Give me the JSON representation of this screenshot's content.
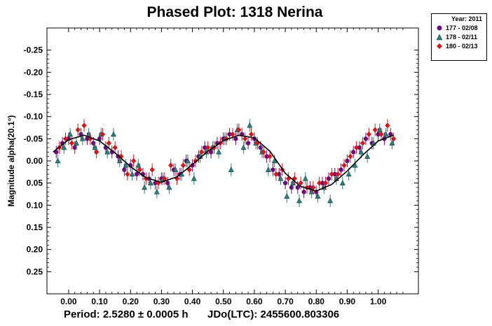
{
  "chart_data": {
    "type": "scatter",
    "title": "Phased Plot: 1318 Nerina",
    "xlabel": "",
    "ylabel": "Magnitude alpha(20.1°)",
    "xlim": [
      -0.07,
      1.13
    ],
    "ylim": [
      -0.3,
      0.3
    ],
    "y_inverted": true,
    "x_ticks": [
      0.0,
      0.1,
      0.2,
      0.3,
      0.4,
      0.5,
      0.6,
      0.7,
      0.8,
      0.9,
      1.0
    ],
    "x_tick_labels": [
      "0.00",
      "0.10",
      "0.20",
      "0.30",
      "0.40",
      "0.50",
      "0.60",
      "0.70",
      "0.80",
      "0.90",
      "1.00"
    ],
    "y_ticks": [
      -0.25,
      -0.2,
      -0.15,
      -0.1,
      -0.05,
      0.0,
      0.05,
      0.1,
      0.15,
      0.2,
      0.25
    ],
    "y_tick_labels": [
      "-0.25",
      "-0.20",
      "-0.15",
      "-0.10",
      "-0.05",
      "0.00",
      "0.05",
      "0.10",
      "0.15",
      "0.20",
      "0.25"
    ],
    "fit_curve": {
      "color": "#000000",
      "x": [
        -0.05,
        0.0,
        0.05,
        0.1,
        0.15,
        0.2,
        0.25,
        0.3,
        0.35,
        0.4,
        0.45,
        0.5,
        0.55,
        0.6,
        0.65,
        0.7,
        0.75,
        0.8,
        0.85,
        0.9,
        0.95,
        1.0,
        1.05
      ],
      "y": [
        -0.02,
        -0.048,
        -0.058,
        -0.045,
        -0.018,
        0.013,
        0.038,
        0.048,
        0.036,
        0.008,
        -0.022,
        -0.046,
        -0.058,
        -0.052,
        -0.022,
        0.028,
        0.058,
        0.068,
        0.053,
        0.023,
        -0.013,
        -0.045,
        -0.058
      ]
    },
    "series": [
      {
        "name": "177 - 02/08",
        "color": "#6a0d7a",
        "marker": "circle",
        "x": [
          -0.04,
          -0.02,
          0.0,
          0.02,
          0.04,
          0.06,
          0.08,
          0.1,
          0.12,
          0.14,
          0.16,
          0.18,
          0.2,
          0.22,
          0.24,
          0.26,
          0.28,
          0.3,
          0.32,
          0.34,
          0.36,
          0.38,
          0.4,
          0.42,
          0.44,
          0.46,
          0.48,
          0.5,
          0.52,
          0.54,
          0.56,
          0.58,
          0.6,
          0.62,
          0.64,
          0.66,
          0.68,
          0.7,
          0.72,
          0.74,
          0.76,
          0.78,
          0.8,
          0.82,
          0.84,
          0.86,
          0.88,
          0.9,
          0.92,
          0.94,
          0.96,
          0.98,
          1.0,
          1.02,
          1.04
        ],
        "y": [
          -0.02,
          -0.04,
          -0.05,
          -0.03,
          -0.06,
          -0.05,
          -0.04,
          -0.05,
          -0.03,
          -0.02,
          -0.01,
          0.02,
          0.01,
          0.03,
          0.03,
          0.04,
          0.05,
          0.04,
          0.05,
          0.02,
          0.03,
          0.0,
          0.01,
          -0.01,
          -0.03,
          -0.02,
          -0.04,
          -0.05,
          -0.06,
          -0.05,
          -0.06,
          -0.04,
          -0.05,
          -0.03,
          -0.01,
          0.02,
          0.03,
          0.05,
          0.06,
          0.06,
          0.07,
          0.06,
          0.07,
          0.05,
          0.04,
          0.03,
          0.02,
          0.0,
          -0.02,
          -0.03,
          -0.05,
          -0.04,
          -0.06,
          -0.05,
          -0.06
        ]
      },
      {
        "name": "178 - 02/11",
        "color": "#2a7f7f",
        "marker": "triangle",
        "x": [
          -0.035,
          -0.015,
          0.005,
          0.025,
          0.045,
          0.065,
          0.085,
          0.105,
          0.125,
          0.145,
          0.165,
          0.185,
          0.205,
          0.225,
          0.245,
          0.265,
          0.285,
          0.305,
          0.325,
          0.345,
          0.365,
          0.385,
          0.405,
          0.425,
          0.445,
          0.465,
          0.485,
          0.505,
          0.525,
          0.545,
          0.565,
          0.585,
          0.605,
          0.625,
          0.645,
          0.665,
          0.685,
          0.705,
          0.725,
          0.745,
          0.765,
          0.785,
          0.805,
          0.825,
          0.845,
          0.865,
          0.885,
          0.905,
          0.925,
          0.945,
          0.965,
          0.985,
          1.005,
          1.025,
          1.045
        ],
        "y": [
          0.0,
          -0.03,
          -0.06,
          -0.04,
          -0.05,
          -0.06,
          -0.03,
          -0.06,
          -0.02,
          -0.06,
          0.0,
          0.01,
          0.03,
          0.01,
          0.06,
          0.05,
          0.07,
          0.04,
          0.06,
          0.02,
          0.03,
          0.0,
          0.04,
          -0.01,
          -0.02,
          -0.03,
          -0.02,
          -0.05,
          0.02,
          -0.07,
          -0.03,
          -0.08,
          -0.04,
          -0.02,
          0.02,
          0.0,
          0.04,
          0.08,
          0.05,
          0.09,
          0.04,
          0.07,
          0.08,
          0.06,
          0.09,
          0.04,
          0.05,
          0.03,
          0.01,
          -0.02,
          -0.01,
          -0.04,
          -0.07,
          -0.06,
          -0.04
        ]
      },
      {
        "name": "180 - 02/13",
        "color": "#d01818",
        "marker": "diamond",
        "x": [
          -0.03,
          -0.01,
          0.01,
          0.03,
          0.05,
          0.07,
          0.09,
          0.11,
          0.13,
          0.15,
          0.17,
          0.19,
          0.21,
          0.23,
          0.25,
          0.27,
          0.29,
          0.31,
          0.33,
          0.35,
          0.37,
          0.39,
          0.41,
          0.43,
          0.45,
          0.47,
          0.49,
          0.51,
          0.53,
          0.55,
          0.57,
          0.59,
          0.61,
          0.63,
          0.65,
          0.67,
          0.69,
          0.71,
          0.73,
          0.75,
          0.77,
          0.79,
          0.81,
          0.83,
          0.85,
          0.87,
          0.89,
          0.91,
          0.93,
          0.95,
          0.97,
          0.99,
          1.01,
          1.03,
          1.05
        ],
        "y": [
          -0.03,
          -0.05,
          -0.04,
          -0.07,
          -0.08,
          -0.05,
          -0.02,
          -0.06,
          -0.04,
          -0.03,
          -0.01,
          0.03,
          0.0,
          0.02,
          0.04,
          0.02,
          0.05,
          0.04,
          0.01,
          0.04,
          0.01,
          0.02,
          0.0,
          -0.02,
          -0.03,
          -0.03,
          -0.04,
          -0.05,
          -0.06,
          -0.07,
          -0.05,
          -0.06,
          -0.04,
          -0.02,
          -0.01,
          0.03,
          0.02,
          0.04,
          0.04,
          0.05,
          0.06,
          0.06,
          0.05,
          0.05,
          0.03,
          0.03,
          0.01,
          -0.01,
          -0.03,
          -0.04,
          -0.06,
          -0.07,
          -0.06,
          -0.08,
          -0.05
        ]
      }
    ],
    "legend": {
      "title": "Year: 2011",
      "placement": "outside-top-right",
      "items": [
        "177 - 02/08",
        "178 - 02/11",
        "180 - 02/13"
      ]
    },
    "grid": false
  },
  "footer": {
    "period": "Period: 2.5280 ± 0.0005 h",
    "jd": "JDo(LTC): 2455600.803306"
  }
}
